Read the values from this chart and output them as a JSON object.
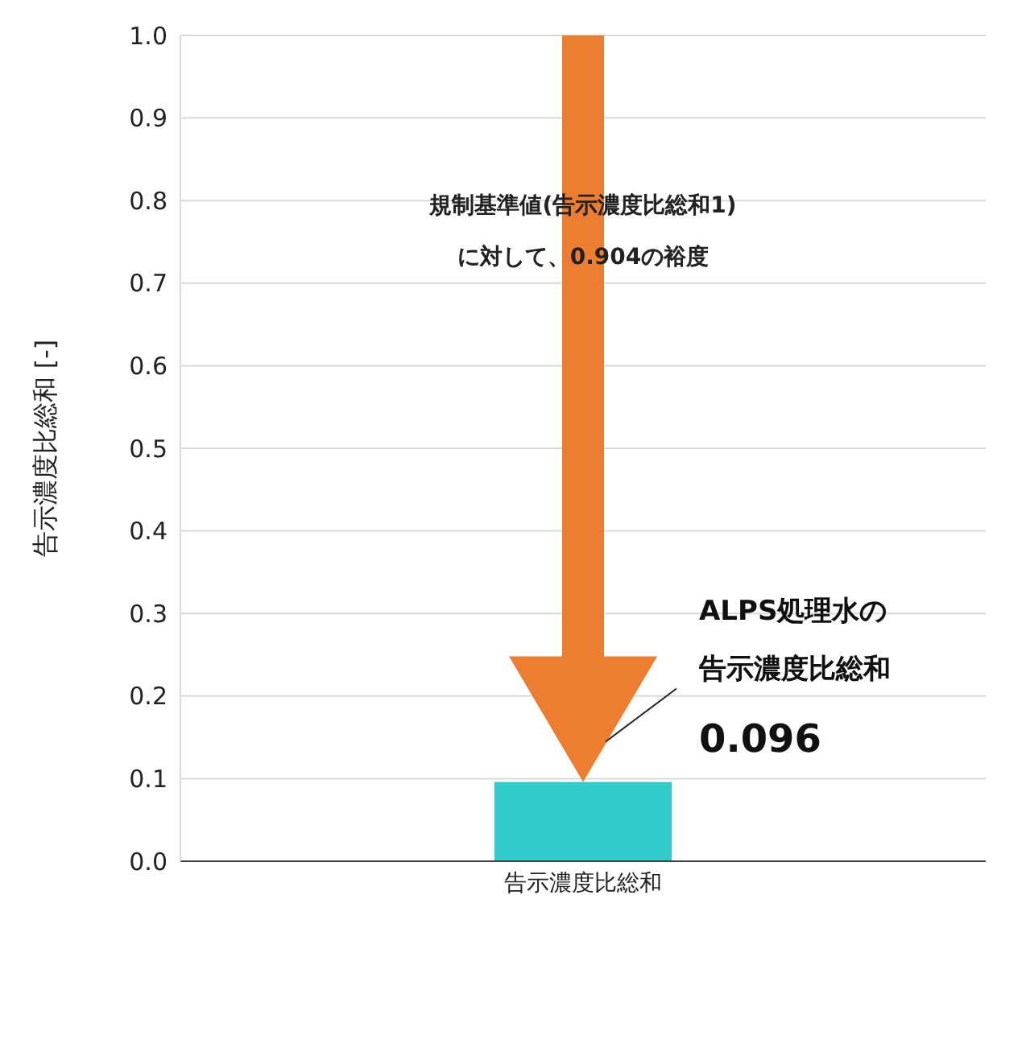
{
  "chart_data": {
    "type": "bar",
    "categories": [
      "告示濃度比総和"
    ],
    "values": [
      0.096
    ],
    "color": "#33cccc",
    "ylabel": "告示濃度比総和 [-]",
    "ylim": [
      0,
      1
    ],
    "yticks": [
      {
        "value": 0,
        "label": "0.0"
      },
      {
        "value": 0.1,
        "label": "0.1"
      },
      {
        "value": 0.2,
        "label": "0.2"
      },
      {
        "value": 0.3,
        "label": "0.3"
      },
      {
        "value": 0.4,
        "label": "0.4"
      },
      {
        "value": 0.5,
        "label": "0.5"
      },
      {
        "value": 0.6,
        "label": "0.6"
      },
      {
        "value": 0.7,
        "label": "0.7"
      },
      {
        "value": 0.8,
        "label": "0.8"
      },
      {
        "value": 0.9,
        "label": "0.9"
      },
      {
        "value": 1,
        "label": "1.0"
      }
    ],
    "grid": "y",
    "annotations": [
      "規制基準値(告示濃度比総和1)\nに対して、0.904の裕度",
      "ALPS処理水の告示濃度比総和",
      "0.096"
    ]
  }
}
